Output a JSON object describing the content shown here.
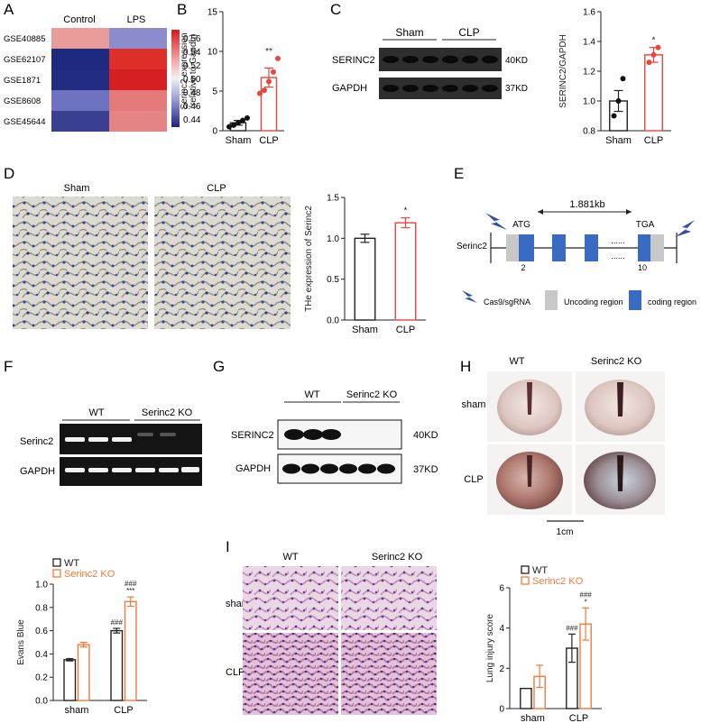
{
  "panel_letters": [
    "A",
    "B",
    "C",
    "D",
    "E",
    "F",
    "G",
    "H",
    "I"
  ],
  "colors": {
    "red": "#e8453c",
    "orange": "#f07a3c",
    "blue_gene": "#3a6bc4",
    "gray_region": "#c8c8c8",
    "heat_high": "#d7191c",
    "heat_low": "#1a237e"
  },
  "panel_a": {
    "columns": [
      "Control",
      "LPS"
    ],
    "rows": [
      "GSE40885",
      "GSE62107",
      "GSE1871",
      "GSE8608",
      "GSE45644"
    ],
    "colorbar_ticks": [
      "0.56",
      "0.54",
      "0.52",
      "0.50",
      "0.48",
      "0.46",
      "0.44"
    ]
  },
  "panel_d": {
    "image_labels": [
      "Sham",
      "CLP"
    ]
  },
  "panel_e": {
    "gene": "Serinc2",
    "distance": "1.881kb",
    "start_codon": "ATG",
    "stop_codon": "TGA",
    "exon_start": "2",
    "exon_end": "10",
    "dots": "......",
    "legend": [
      "Cas9/sgRNA",
      "Uncoding region",
      "coding region"
    ]
  },
  "panel_f": {
    "groups": [
      "WT",
      "Serinc2 KO"
    ],
    "bands": [
      "Serinc2",
      "GAPDH"
    ]
  },
  "panel_g": {
    "groups": [
      "WT",
      "Serinc2 KO"
    ],
    "bands": [
      "SERINC2",
      "GAPDH"
    ],
    "sizes": [
      "40KD",
      "37KD"
    ]
  },
  "panel_c_blot": {
    "groups": [
      "Sham",
      "CLP"
    ],
    "bands": [
      "SERINC2",
      "GAPDH"
    ],
    "sizes": [
      "40KD",
      "37KD"
    ]
  },
  "panel_h": {
    "columns": [
      "WT",
      "Serinc2 KO"
    ],
    "rows": [
      "sham",
      "CLP"
    ],
    "scale": "1cm"
  },
  "panel_i": {
    "columns": [
      "WT",
      "Serinc2 KO"
    ],
    "rows": [
      "sham",
      "CLP"
    ]
  },
  "chart_data": [
    {
      "id": "B",
      "type": "bar",
      "categories": [
        "Sham",
        "CLP"
      ],
      "values": [
        1.0,
        6.7
      ],
      "errors": [
        0.3,
        1.2
      ],
      "points": [
        [
          0.5,
          0.7,
          1.0,
          1.3,
          1.6
        ],
        [
          4.7,
          5.1,
          6.2,
          7.4,
          9.1
        ]
      ],
      "ylabel": "Serinc2 expression\n(relative to Gapdh)",
      "ylim": [
        0,
        15
      ],
      "yticks": [
        "0",
        "5",
        "10",
        "15"
      ],
      "annotations": [
        "",
        "**"
      ]
    },
    {
      "id": "C",
      "type": "bar",
      "categories": [
        "Sham",
        "CLP"
      ],
      "values": [
        1.0,
        1.31
      ],
      "errors": [
        0.07,
        0.05
      ],
      "points": [
        [
          0.9,
          1.0,
          1.15
        ],
        [
          1.26,
          1.31,
          1.36
        ]
      ],
      "ylabel": "SERINC2/GAPDH",
      "ylim": [
        0.8,
        1.6
      ],
      "yticks": [
        "0.8",
        "1.0",
        "1.2",
        "1.4",
        "1.6"
      ],
      "annotations": [
        "",
        "*"
      ]
    },
    {
      "id": "D",
      "type": "bar",
      "categories": [
        "Sham",
        "CLP"
      ],
      "values": [
        1.0,
        1.19
      ],
      "errors": [
        0.05,
        0.06
      ],
      "ylabel": "THe expression of Serinc2",
      "ylim": [
        0,
        1.5
      ],
      "yticks": [
        "0.0",
        "0.5",
        "1.0",
        "1.5"
      ],
      "annotations": [
        "",
        "*"
      ]
    },
    {
      "id": "F",
      "type": "bar",
      "categories": [
        "sham",
        "CLP"
      ],
      "series": [
        {
          "name": "WT",
          "values": [
            0.35,
            0.6
          ],
          "errors": [
            0.01,
            0.02
          ],
          "annotations": [
            "",
            "###"
          ]
        },
        {
          "name": "Serinc2 KO",
          "values": [
            0.48,
            0.85
          ],
          "errors": [
            0.02,
            0.04
          ],
          "annotations": [
            "",
            "###\n***"
          ]
        }
      ],
      "ylabel": "Evans Blue",
      "ylim": [
        0,
        1.0
      ],
      "yticks": [
        "0.0",
        "0.2",
        "0.4",
        "0.6",
        "0.8",
        "1.0"
      ]
    },
    {
      "id": "I",
      "type": "bar",
      "categories": [
        "sham",
        "CLP"
      ],
      "series": [
        {
          "name": "WT",
          "values": [
            1.0,
            3.0
          ],
          "errors": [
            0.0,
            0.7
          ],
          "annotations": [
            "",
            "###"
          ]
        },
        {
          "name": "Serinc2 KO",
          "values": [
            1.6,
            4.2
          ],
          "errors": [
            0.55,
            0.8
          ],
          "annotations": [
            "",
            "###\n*"
          ]
        }
      ],
      "ylabel": "Lung injury score",
      "ylim": [
        0,
        6
      ],
      "yticks": [
        "0",
        "2",
        "4",
        "6"
      ]
    }
  ]
}
